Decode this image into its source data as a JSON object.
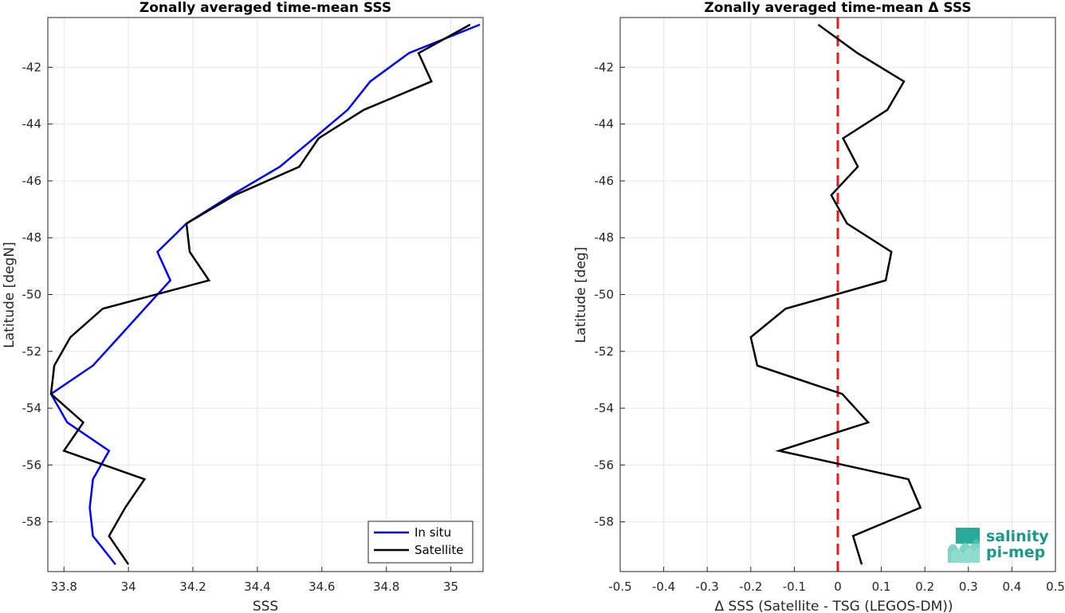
{
  "chart_data": [
    {
      "type": "line",
      "title": "Zonally averaged time-mean SSS",
      "xlabel": "SSS",
      "ylabel": "Latitude [degN]",
      "xlim": [
        33.75,
        35.1
      ],
      "ylim": [
        -59.75,
        -40.25
      ],
      "xticks": [
        "33.8",
        "34",
        "34.2",
        "34.4",
        "34.6",
        "34.8",
        "35"
      ],
      "xtick_values": [
        33.8,
        34.0,
        34.2,
        34.4,
        34.6,
        34.8,
        35.0
      ],
      "yticks": [
        "-42",
        "-44",
        "-46",
        "-48",
        "-50",
        "-52",
        "-54",
        "-56",
        "-58"
      ],
      "ytick_values": [
        -42,
        -44,
        -46,
        -48,
        -50,
        -52,
        -54,
        -56,
        -58
      ],
      "grid": true,
      "legend_position": "bottom-right",
      "series": [
        {
          "name": "In situ",
          "color": "#0000ff",
          "x": [
            35.09,
            34.87,
            34.75,
            34.68,
            34.47,
            34.32,
            34.18,
            34.09,
            34.13,
            34.05,
            33.97,
            33.89,
            33.76,
            33.81,
            33.94,
            33.89,
            33.88,
            33.89,
            33.96
          ],
          "y": [
            -40.5,
            -41.5,
            -42.5,
            -43.5,
            -45.5,
            -46.5,
            -47.5,
            -48.5,
            -49.5,
            -50.5,
            -51.5,
            -52.5,
            -53.5,
            -54.5,
            -55.5,
            -56.5,
            -57.5,
            -58.5,
            -59.5
          ]
        },
        {
          "name": "Satellite",
          "color": "#000000",
          "x": [
            35.06,
            34.9,
            34.94,
            34.73,
            34.59,
            34.53,
            34.33,
            34.18,
            34.19,
            34.25,
            33.92,
            33.82,
            33.77,
            33.76,
            33.86,
            33.8,
            34.05,
            33.99,
            33.94,
            34.0
          ],
          "y": [
            -40.5,
            -41.5,
            -42.5,
            -43.5,
            -44.5,
            -45.5,
            -46.5,
            -47.5,
            -48.5,
            -49.5,
            -50.5,
            -51.5,
            -52.5,
            -53.5,
            -54.5,
            -55.5,
            -56.5,
            -57.5,
            -58.5,
            -59.5
          ]
        }
      ]
    },
    {
      "type": "line",
      "title": "Zonally averaged time-mean Δ SSS",
      "xlabel": "Δ SSS (Satellite - TSG (LEGOS-DM))",
      "ylabel": "Latitude [deg]",
      "xlim": [
        -0.5,
        0.5
      ],
      "ylim": [
        -59.75,
        -40.25
      ],
      "xticks": [
        "-0.5",
        "-0.4",
        "-0.3",
        "-0.2",
        "-0.1",
        "0",
        "0.1",
        "0.2",
        "0.3",
        "0.4",
        "0.5"
      ],
      "xtick_values": [
        -0.5,
        -0.4,
        -0.3,
        -0.2,
        -0.1,
        0,
        0.1,
        0.2,
        0.3,
        0.4,
        0.5
      ],
      "yticks": [
        "-42",
        "-44",
        "-46",
        "-48",
        "-50",
        "-52",
        "-54",
        "-56",
        "-58"
      ],
      "ytick_values": [
        -42,
        -44,
        -46,
        -48,
        -50,
        -52,
        -54,
        -56,
        -58
      ],
      "grid": true,
      "reference_line": {
        "x": 0,
        "color": "#e8191a",
        "style": "dashed"
      },
      "series": [
        {
          "color": "#000000",
          "x": [
            -0.045,
            0.045,
            0.152,
            0.114,
            0.012,
            0.046,
            -0.015,
            0.021,
            0.123,
            0.11,
            -0.12,
            -0.2,
            -0.185,
            0.01,
            0.07,
            -0.135,
            0.162,
            0.19,
            0.035,
            0.055
          ],
          "y": [
            -40.5,
            -41.5,
            -42.5,
            -43.5,
            -44.5,
            -45.5,
            -46.5,
            -47.5,
            -48.5,
            -49.5,
            -50.5,
            -51.5,
            -52.5,
            -53.5,
            -54.5,
            -55.5,
            -56.5,
            -57.5,
            -58.5,
            -59.5
          ]
        }
      ]
    }
  ],
  "logo": {
    "line1": "salinity",
    "line2": "pi-mep"
  }
}
